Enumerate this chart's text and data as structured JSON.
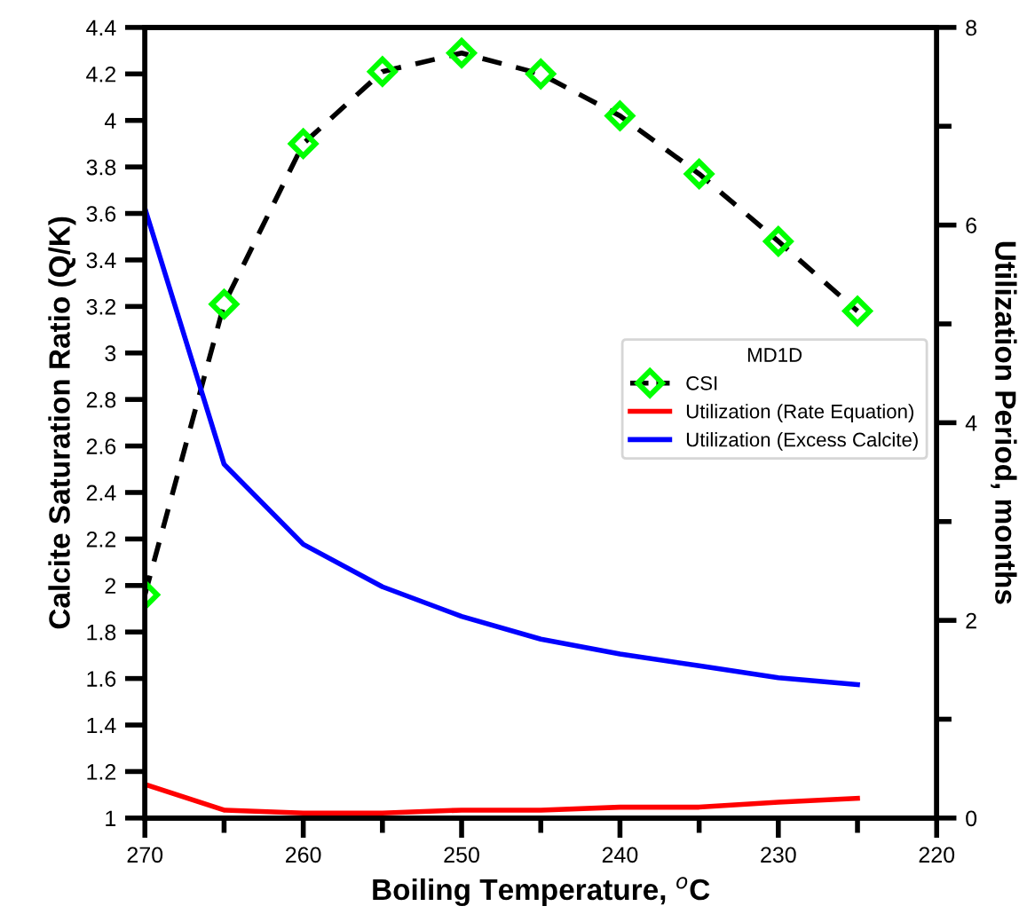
{
  "chart_data": {
    "type": "line",
    "xlabel": "Boiling Temperature, $^{o}$C",
    "ylabel": "Calcite Saturation Ratio (Q/K)",
    "y2label": "Utilization Period, months",
    "legend_title": "MD1D",
    "legend": "right",
    "grid": false,
    "x": [
      270,
      265,
      260,
      255,
      250,
      245,
      240,
      235,
      230,
      225
    ],
    "xlim": [
      270,
      220
    ],
    "xticks": [
      270,
      260,
      250,
      240,
      230,
      220
    ],
    "ylim": [
      1,
      4.4
    ],
    "yticks": [
      1,
      1.2,
      1.4,
      1.6,
      1.8,
      2,
      2.2,
      2.4,
      2.6,
      2.8,
      3,
      3.2,
      3.4,
      3.6,
      3.8,
      4,
      4.2,
      4.4
    ],
    "y2lim": [
      0,
      8
    ],
    "y2ticks": [
      0,
      2,
      4,
      6,
      8
    ],
    "series": [
      {
        "name": "CSI",
        "color": "#000000",
        "marker": "diamond",
        "colors": [
          "#00ff00",
          "#00ff00",
          "#00ff00",
          "#00ff00",
          "#00ff00",
          "#00ff00",
          "#00ff00",
          "#00ff00",
          "#00ff00",
          "#00ff00"
        ],
        "line_style": "dashed",
        "values": [
          1.96,
          3.21,
          3.9,
          4.21,
          4.29,
          4.2,
          4.02,
          3.77,
          3.48,
          3.18
        ]
      },
      {
        "name": "Utilization (Rate Equation)",
        "color": "#ff0000",
        "axis": "y2",
        "line_style": "solid",
        "values": [
          0.34,
          0.08,
          0.05,
          0.05,
          0.08,
          0.08,
          0.11,
          0.11,
          0.16,
          0.2
        ]
      },
      {
        "name": "Utilization (Excess Calcite)",
        "color": "#0000ff",
        "axis": "y2",
        "line_style": "solid",
        "values": [
          6.17,
          3.58,
          2.77,
          2.34,
          2.04,
          1.81,
          1.66,
          1.54,
          1.42,
          1.35
        ]
      }
    ]
  }
}
